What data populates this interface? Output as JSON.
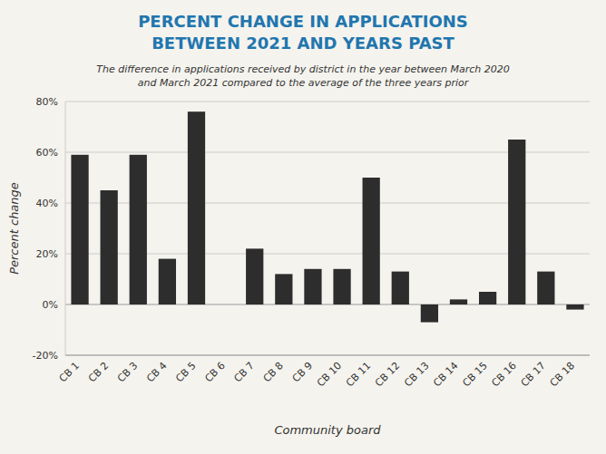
{
  "chart_data": {
    "type": "bar",
    "title": "PERCENT CHANGE IN APPLICATIONS\nBETWEEN 2021 AND YEARS PAST",
    "subtitle": "The difference in applications received by district in the year between March 2020\nand March 2021 compared to the average of the three years prior",
    "x_label": "Community board",
    "y_label": "Percent change",
    "categories": [
      "CB 1",
      "CB 2",
      "CB 3",
      "CB 4",
      "CB 5",
      "CB 6",
      "CB 7",
      "CB 8",
      "CB 9",
      "CB 10",
      "CB 11",
      "CB 12",
      "CB 13",
      "CB 14",
      "CB 15",
      "CB 16",
      "CB 17",
      "CB 18"
    ],
    "values": [
      0.59,
      0.45,
      0.59,
      0.18,
      0.76,
      0.0,
      0.22,
      0.12,
      0.14,
      0.14,
      0.5,
      0.13,
      -0.07,
      0.02,
      0.05,
      0.65,
      0.13,
      -0.02
    ],
    "color": "#2d2d2d",
    "ylim": [
      -0.2,
      0.8
    ],
    "yticks": [
      {
        "value": -0.2,
        "label": "-20%"
      },
      {
        "value": 0.0,
        "label": "0%"
      },
      {
        "value": 0.2,
        "label": "20%"
      },
      {
        "value": 0.4,
        "label": "40%"
      },
      {
        "value": 0.6,
        "label": "60%"
      },
      {
        "value": 0.8,
        "label": "80%"
      }
    ],
    "grid": true
  }
}
